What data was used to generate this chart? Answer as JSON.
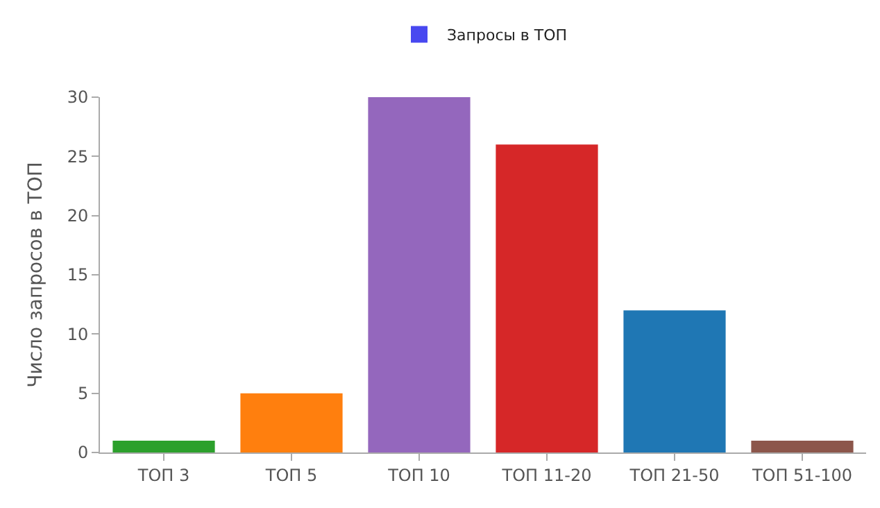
{
  "chart_data": {
    "type": "bar",
    "ylabel": "Число запросов в ТОП",
    "categories": [
      "ТОП 3",
      "ТОП 5",
      "ТОП 10",
      "ТОП 11-20",
      "ТОП 21-50",
      "ТОП 51-100"
    ],
    "series": [
      {
        "name": "Запросы в ТОП",
        "color": "#4848f0",
        "values": [
          1,
          5,
          30,
          26,
          12,
          1
        ],
        "colors": [
          "#2ca02c",
          "#ff7f0e",
          "#9467bd",
          "#d62728",
          "#1f77b4",
          "#8c564b"
        ]
      }
    ],
    "ylim": [
      0,
      30
    ],
    "yticks": [
      0,
      5,
      10,
      15,
      20,
      25,
      30
    ],
    "legend": "top"
  }
}
